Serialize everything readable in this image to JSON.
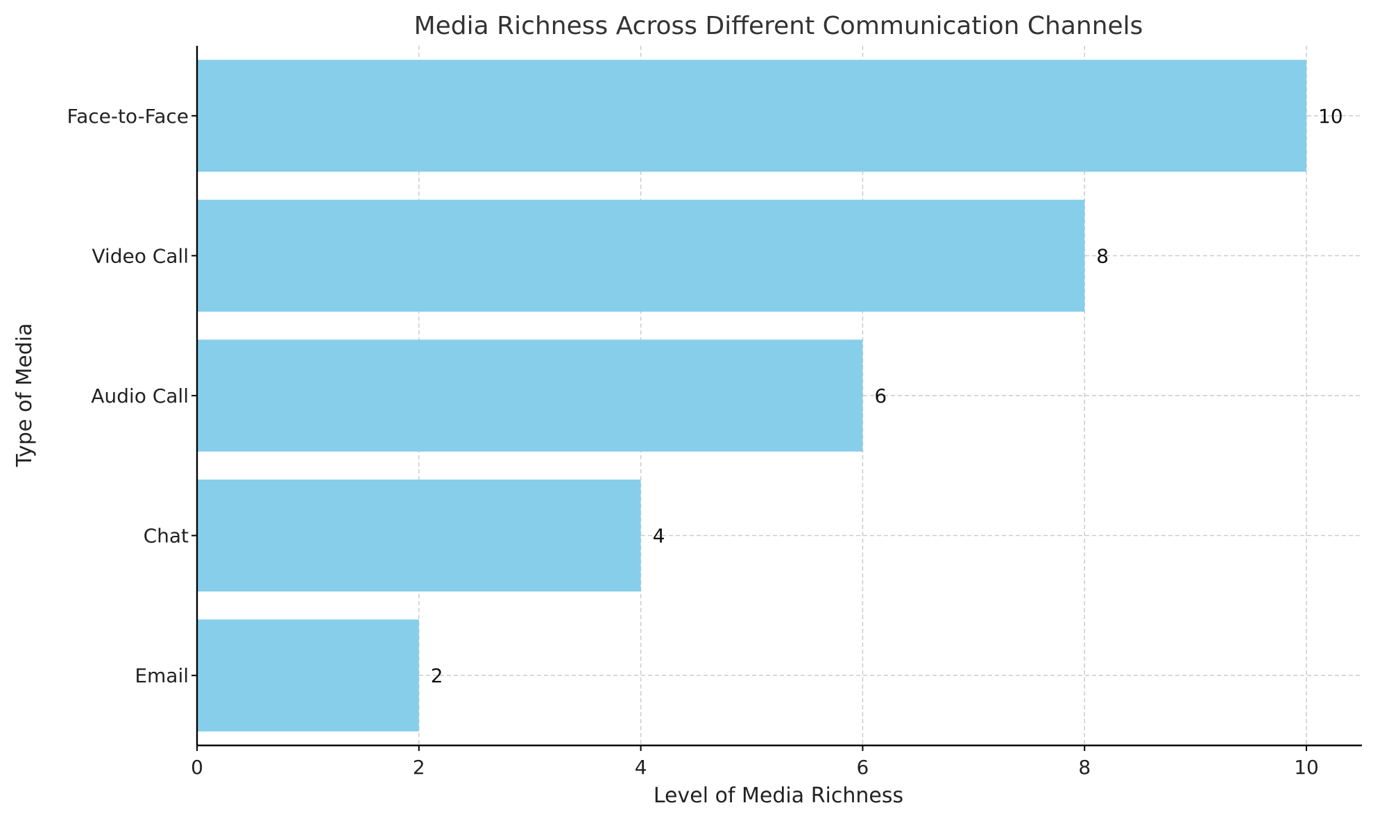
{
  "chart_data": {
    "type": "bar",
    "orientation": "horizontal",
    "title": "Media Richness Across Different Communication Channels",
    "xlabel": "Level of Media Richness",
    "ylabel": "Type of Media",
    "categories": [
      "Email",
      "Chat",
      "Audio Call",
      "Video Call",
      "Face-to-Face"
    ],
    "values": [
      2,
      4,
      6,
      8,
      10
    ],
    "xlim": [
      0,
      10.5
    ],
    "xticks": [
      0,
      2,
      4,
      6,
      8,
      10
    ],
    "bar_color": "#87CEEB",
    "grid": true,
    "data_labels": true
  }
}
